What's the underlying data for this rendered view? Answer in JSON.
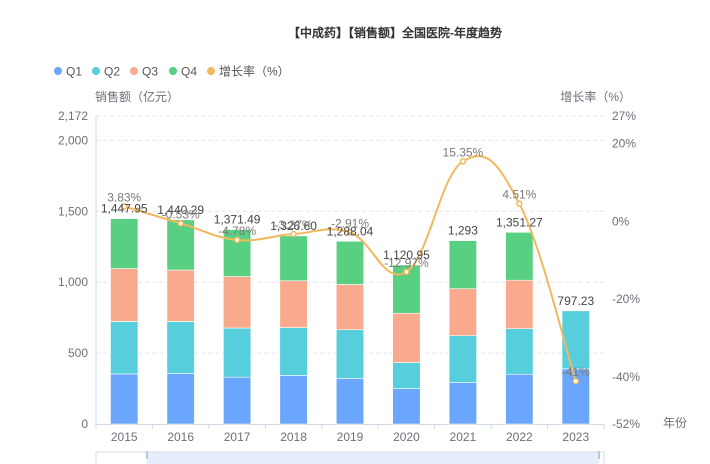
{
  "title": "【中成药】【销售额】全国医院-年度趋势",
  "legend": [
    {
      "label": "Q1",
      "color": "#6AA6FC"
    },
    {
      "label": "Q2",
      "color": "#56CEDC"
    },
    {
      "label": "Q3",
      "color": "#F9A98C"
    },
    {
      "label": "Q4",
      "color": "#58CF81"
    },
    {
      "label": "增长率（%）",
      "color": "#F2B85C"
    }
  ],
  "chart_data": {
    "type": "bar",
    "title": "【中成药】【销售额】全国医院-年度趋势",
    "categories": [
      "2015",
      "2016",
      "2017",
      "2018",
      "2019",
      "2020",
      "2021",
      "2022",
      "2023"
    ],
    "series": [
      {
        "name": "Q1",
        "type": "bar",
        "stack": "total",
        "axis": "left",
        "color": "#6AA6FC",
        "values": [
          353,
          355,
          330,
          342,
          320,
          250,
          292,
          351,
          389
        ]
      },
      {
        "name": "Q2",
        "type": "bar",
        "stack": "total",
        "axis": "left",
        "color": "#56CEDC",
        "values": [
          370,
          368,
          347,
          338,
          345,
          184,
          331,
          321,
          409
        ]
      },
      {
        "name": "Q3",
        "type": "bar",
        "stack": "total",
        "axis": "left",
        "color": "#F9A98C",
        "values": [
          373,
          363,
          363,
          330,
          319,
          347,
          331,
          342,
          null
        ]
      },
      {
        "name": "Q4",
        "type": "bar",
        "stack": "total",
        "axis": "left",
        "color": "#58CF81",
        "values": [
          352,
          354,
          331,
          317,
          305,
          340,
          339,
          338,
          null
        ]
      },
      {
        "name": "增长率（%）",
        "type": "line",
        "axis": "right",
        "smooth": true,
        "color": "#F2B85C",
        "values": [
          3.83,
          -0.53,
          -4.78,
          -3.27,
          -2.91,
          -12.97,
          15.35,
          4.51,
          -41
        ]
      }
    ],
    "totals": [
      1447.95,
      1440.29,
      1371.49,
      1326.6,
      1288.04,
      1120.95,
      1293,
      1351.27,
      797.23
    ],
    "total_labels": [
      "1,447.95",
      "1,440.29",
      "1,371.49",
      "1,326.60",
      "1,288.04",
      "1,120.95",
      "1,293",
      "1,351.27",
      "797.23"
    ],
    "growth_labels": [
      "3.83%",
      "-0.53%",
      "-4.78%",
      "-3.27%",
      "-2.91%",
      "-12.97%",
      "15.35%",
      "4.51%",
      "-41%"
    ],
    "xlabel": "年份",
    "ylabel": "销售额（亿元）",
    "y2label": "增长率（%）",
    "ylim": [
      0,
      2172
    ],
    "y2lim": [
      -52,
      27
    ],
    "yticks": [
      0,
      500,
      1000,
      1500,
      2000,
      2172
    ],
    "ytick_labels": [
      "0",
      "500",
      "1,000",
      "1,500",
      "2,000",
      "2,172"
    ],
    "y2ticks": [
      -52,
      -40,
      -20,
      0,
      20,
      27
    ],
    "y2tick_labels": [
      "-52%",
      "-40%",
      "-20%",
      "0%",
      "20%",
      "27%"
    ],
    "grid": true,
    "legend_position": "top-left"
  }
}
